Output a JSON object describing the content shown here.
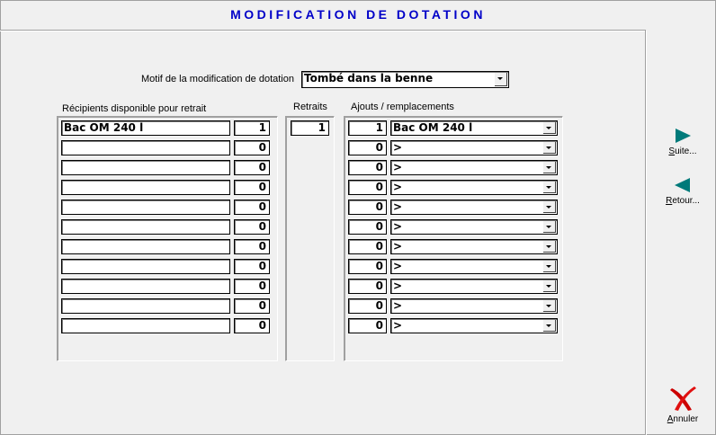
{
  "title": "MODIFICATION DE DOTATION",
  "motif": {
    "label": "Motif de la modification de dotation",
    "value": "Tombé dans la benne"
  },
  "left": {
    "header": "Récipients disponible pour retrait",
    "rows": [
      {
        "name": "Bac OM 240 l",
        "qty": "1"
      },
      {
        "name": "",
        "qty": "0"
      },
      {
        "name": "",
        "qty": "0"
      },
      {
        "name": "",
        "qty": "0"
      },
      {
        "name": "",
        "qty": "0"
      },
      {
        "name": "",
        "qty": "0"
      },
      {
        "name": "",
        "qty": "0"
      },
      {
        "name": "",
        "qty": "0"
      },
      {
        "name": "",
        "qty": "0"
      },
      {
        "name": "",
        "qty": "0"
      },
      {
        "name": "",
        "qty": "0"
      }
    ]
  },
  "retraits": {
    "header": "Retraits",
    "value": "1"
  },
  "right": {
    "header": "Ajouts / remplacements",
    "rows": [
      {
        "qty": "1",
        "item": "Bac OM 240 l"
      },
      {
        "qty": "0",
        "item": ">"
      },
      {
        "qty": "0",
        "item": ">"
      },
      {
        "qty": "0",
        "item": ">"
      },
      {
        "qty": "0",
        "item": ">"
      },
      {
        "qty": "0",
        "item": ">"
      },
      {
        "qty": "0",
        "item": ">"
      },
      {
        "qty": "0",
        "item": ">"
      },
      {
        "qty": "0",
        "item": ">"
      },
      {
        "qty": "0",
        "item": ">"
      },
      {
        "qty": "0",
        "item": ">"
      }
    ]
  },
  "buttons": {
    "next": "Suite...",
    "back": "Retour...",
    "cancel": "Annuler"
  },
  "colors": {
    "title": "#0000c8",
    "arrows": "#007a7a",
    "cancel_icon": "#d01010"
  }
}
